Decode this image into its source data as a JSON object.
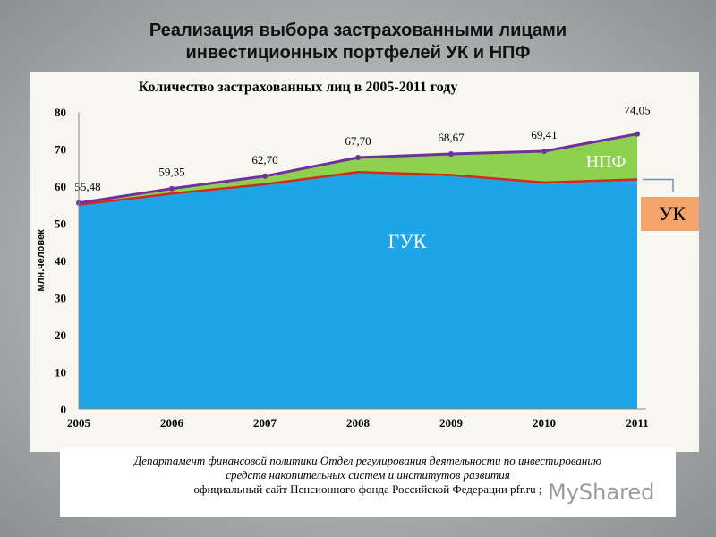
{
  "slide": {
    "title_line1": "Реализация выбора застрахованными лицами",
    "title_line2": "инвестиционных портфелей УК и НПФ"
  },
  "chart_data": {
    "type": "area",
    "title": "Количество застрахованных лиц в 2005-2011 году",
    "ylabel": "млн.человек",
    "ylim": [
      0,
      80
    ],
    "yticks": [
      0,
      10,
      20,
      30,
      40,
      50,
      60,
      70,
      80
    ],
    "categories": [
      "2005",
      "2006",
      "2007",
      "2008",
      "2009",
      "2010",
      "2011"
    ],
    "series": [
      {
        "name": "ГУК",
        "values": [
          55.0,
          58.0,
          60.5,
          63.8,
          63.0,
          61.0,
          61.8
        ],
        "color": "#1ea5e8",
        "line": "#d42a1e"
      },
      {
        "name": "НПФ",
        "values": [
          0.48,
          1.35,
          2.2,
          3.9,
          5.67,
          8.41,
          12.25
        ],
        "color": "#8dd14f"
      }
    ],
    "total": {
      "values": [
        55.48,
        59.35,
        62.7,
        67.7,
        68.67,
        69.41,
        74.05
      ],
      "labels": [
        "55,48",
        "59,35",
        "62,70",
        "67,70",
        "68,67",
        "69,41",
        "74,05"
      ],
      "color": "#7030a0"
    },
    "annotations": [
      "ГУК",
      "НПФ",
      "УК"
    ],
    "grid": false
  },
  "footer": {
    "line1": "Департамент финансовой политики Отдел регулирования деятельности по инвестированию",
    "line2": "средств накопительных систем и институтов развития",
    "line3": "официальный сайт Пенсионного фонда Российской Федерации pfr.ru ;"
  },
  "watermark": "MyShared"
}
